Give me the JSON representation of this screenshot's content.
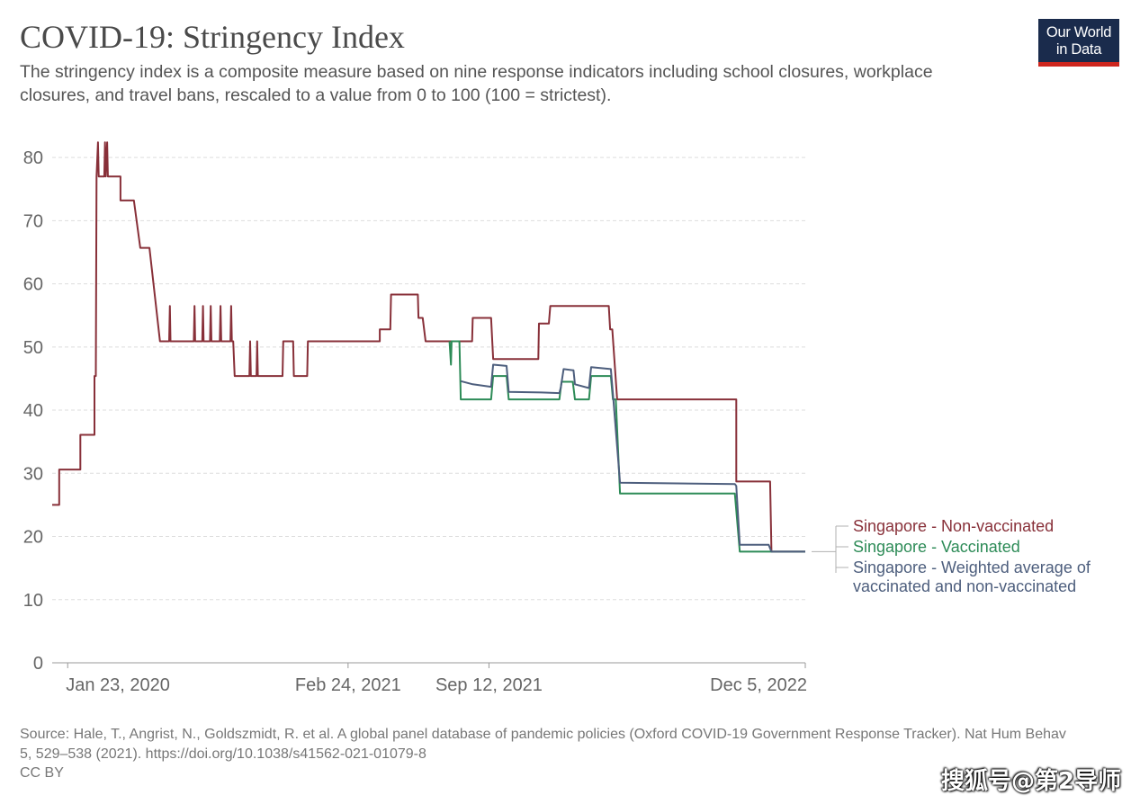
{
  "header": {
    "title": "COVID-19: Stringency Index",
    "subtitle": "The stringency index is a composite measure based on nine response indicators including school closures, workplace closures, and travel bans, rescaled to a value from 0 to 100 (100 = strictest)."
  },
  "logo": {
    "line1": "Our World",
    "line2": "in Data",
    "bg_color": "#1a2b4c",
    "accent_color": "#ce261e"
  },
  "footer": {
    "source": "Source: Hale, T., Angrist, N., Goldszmidt, R. et al. A global panel database of pandemic policies (Oxford COVID-19 Government Response Tracker). Nat Hum Behav 5, 529–538 (2021). https://doi.org/10.1038/s41562-021-01079-8",
    "license": "CC BY"
  },
  "watermark": "搜狐号@第2导师",
  "chart_data": {
    "type": "line",
    "title": "COVID-19: Stringency Index",
    "xlabel": "",
    "ylabel": "",
    "ylim": [
      0,
      85
    ],
    "y_ticks": [
      0,
      10,
      20,
      30,
      40,
      50,
      60,
      70,
      80
    ],
    "x_range": [
      "2020-01-01",
      "2022-12-05"
    ],
    "x_tick_labels": [
      {
        "date": "2020-01-23",
        "label": "Jan 23, 2020"
      },
      {
        "date": "2021-02-24",
        "label": "Feb 24, 2021"
      },
      {
        "date": "2021-09-12",
        "label": "Sep 12, 2021"
      },
      {
        "date": "2022-12-05",
        "label": "Dec 5, 2022"
      }
    ],
    "grid": "horizontal-dashed",
    "legend": "right",
    "series": [
      {
        "name": "Singapore - Non-vaccinated",
        "color": "#883039",
        "points": [
          [
            "2020-01-01",
            25
          ],
          [
            "2020-01-11",
            25
          ],
          [
            "2020-01-11",
            30.6
          ],
          [
            "2020-02-10",
            30.6
          ],
          [
            "2020-02-10",
            36.1
          ],
          [
            "2020-03-01",
            36.1
          ],
          [
            "2020-03-01",
            45.4
          ],
          [
            "2020-03-03",
            45.4
          ],
          [
            "2020-03-04",
            77
          ],
          [
            "2020-03-06",
            82.4
          ],
          [
            "2020-03-07",
            77
          ],
          [
            "2020-03-15",
            77
          ],
          [
            "2020-03-16",
            82.4
          ],
          [
            "2020-03-17",
            77
          ],
          [
            "2020-03-19",
            82.4
          ],
          [
            "2020-03-20",
            77
          ],
          [
            "2020-04-07",
            77
          ],
          [
            "2020-04-07",
            73.2
          ],
          [
            "2020-04-26",
            73.2
          ],
          [
            "2020-05-05",
            65.7
          ],
          [
            "2020-05-18",
            65.7
          ],
          [
            "2020-06-02",
            50.9
          ],
          [
            "2020-06-15",
            50.9
          ],
          [
            "2020-06-16",
            56.5
          ],
          [
            "2020-06-17",
            50.9
          ],
          [
            "2020-07-20",
            50.9
          ],
          [
            "2020-07-21",
            56.5
          ],
          [
            "2020-07-22",
            50.9
          ],
          [
            "2020-08-01",
            50.9
          ],
          [
            "2020-08-02",
            56.5
          ],
          [
            "2020-08-03",
            50.9
          ],
          [
            "2020-08-12",
            50.9
          ],
          [
            "2020-08-13",
            56.5
          ],
          [
            "2020-08-14",
            50.9
          ],
          [
            "2020-08-26",
            50.9
          ],
          [
            "2020-08-27",
            56.5
          ],
          [
            "2020-08-28",
            50.9
          ],
          [
            "2020-09-10",
            50.9
          ],
          [
            "2020-09-11",
            56.5
          ],
          [
            "2020-09-12",
            50.9
          ],
          [
            "2020-09-14",
            50.9
          ],
          [
            "2020-09-16",
            45.4
          ],
          [
            "2020-10-07",
            45.4
          ],
          [
            "2020-10-08",
            50.9
          ],
          [
            "2020-10-09",
            45.4
          ],
          [
            "2020-10-17",
            45.4
          ],
          [
            "2020-10-18",
            50.9
          ],
          [
            "2020-10-19",
            45.4
          ],
          [
            "2020-11-23",
            45.4
          ],
          [
            "2020-11-24",
            50.9
          ],
          [
            "2020-12-08",
            50.9
          ],
          [
            "2020-12-09",
            45.4
          ],
          [
            "2020-12-28",
            45.4
          ],
          [
            "2020-12-29",
            50.9
          ],
          [
            "2021-04-10",
            50.9
          ],
          [
            "2021-04-10",
            52.8
          ],
          [
            "2021-04-25",
            52.8
          ],
          [
            "2021-04-26",
            58.3
          ],
          [
            "2021-06-03",
            58.3
          ],
          [
            "2021-06-04",
            54.6
          ],
          [
            "2021-06-10",
            54.6
          ],
          [
            "2021-06-14",
            50.9
          ],
          [
            "2021-08-19",
            50.9
          ],
          [
            "2021-08-20",
            54.6
          ],
          [
            "2021-09-15",
            54.6
          ],
          [
            "2021-09-18",
            48.1
          ],
          [
            "2021-11-21",
            48.1
          ],
          [
            "2021-11-22",
            53.7
          ],
          [
            "2021-12-06",
            53.7
          ],
          [
            "2021-12-08",
            56.5
          ],
          [
            "2022-03-01",
            56.5
          ],
          [
            "2022-03-03",
            52.8
          ],
          [
            "2022-03-06",
            52.8
          ],
          [
            "2022-03-13",
            41.7
          ],
          [
            "2022-08-29",
            41.7
          ],
          [
            "2022-08-29",
            28.7
          ],
          [
            "2022-10-16",
            28.7
          ],
          [
            "2022-10-18",
            17.6
          ],
          [
            "2022-12-05",
            17.6
          ]
        ]
      },
      {
        "name": "Singapore - Vaccinated",
        "color": "#2d8b57",
        "points": [
          [
            "2021-07-18",
            50.9
          ],
          [
            "2021-07-20",
            47.2
          ],
          [
            "2021-07-21",
            50.9
          ],
          [
            "2021-08-01",
            50.9
          ],
          [
            "2021-08-03",
            41.7
          ],
          [
            "2021-09-15",
            41.7
          ],
          [
            "2021-09-18",
            45.4
          ],
          [
            "2021-10-07",
            45.4
          ],
          [
            "2021-10-10",
            41.7
          ],
          [
            "2021-12-21",
            41.7
          ],
          [
            "2021-12-24",
            44.5
          ],
          [
            "2022-01-09",
            44.5
          ],
          [
            "2022-01-12",
            41.7
          ],
          [
            "2022-02-01",
            41.7
          ],
          [
            "2022-02-04",
            45.4
          ],
          [
            "2022-03-04",
            45.4
          ],
          [
            "2022-03-07",
            41.7
          ],
          [
            "2022-03-11",
            41.7
          ],
          [
            "2022-03-17",
            26.8
          ],
          [
            "2022-08-27",
            26.8
          ],
          [
            "2022-09-03",
            17.6
          ],
          [
            "2022-12-05",
            17.6
          ]
        ]
      },
      {
        "name": "Singapore - Weighted average of vaccinated and non-vaccinated",
        "color": "#4d5e7d",
        "points": [
          [
            "2021-08-03",
            44.6
          ],
          [
            "2021-08-20",
            44.1
          ],
          [
            "2021-09-15",
            43.7
          ],
          [
            "2021-09-18",
            47.2
          ],
          [
            "2021-10-07",
            47.0
          ],
          [
            "2021-10-10",
            42.9
          ],
          [
            "2021-11-25",
            42.8
          ],
          [
            "2021-12-21",
            42.7
          ],
          [
            "2021-12-23",
            43.6
          ],
          [
            "2021-12-27",
            46.5
          ],
          [
            "2022-01-10",
            46.3
          ],
          [
            "2022-01-12",
            44.1
          ],
          [
            "2022-02-01",
            43.5
          ],
          [
            "2022-02-04",
            46.8
          ],
          [
            "2022-03-04",
            46.5
          ],
          [
            "2022-03-07",
            42.6
          ],
          [
            "2022-03-17",
            28.5
          ],
          [
            "2022-08-27",
            28.3
          ],
          [
            "2022-08-29",
            28.0
          ],
          [
            "2022-09-03",
            18.7
          ],
          [
            "2022-10-14",
            18.7
          ],
          [
            "2022-10-18",
            17.6
          ],
          [
            "2022-12-05",
            17.6
          ]
        ]
      }
    ],
    "legend_entries": [
      {
        "lines": [
          "Singapore - Non-vaccinated"
        ],
        "color": "#883039"
      },
      {
        "lines": [
          "Singapore - Vaccinated"
        ],
        "color": "#2d8b57"
      },
      {
        "lines": [
          "Singapore - Weighted average of",
          "vaccinated and non-vaccinated"
        ],
        "color": "#4d5e7d"
      }
    ]
  }
}
